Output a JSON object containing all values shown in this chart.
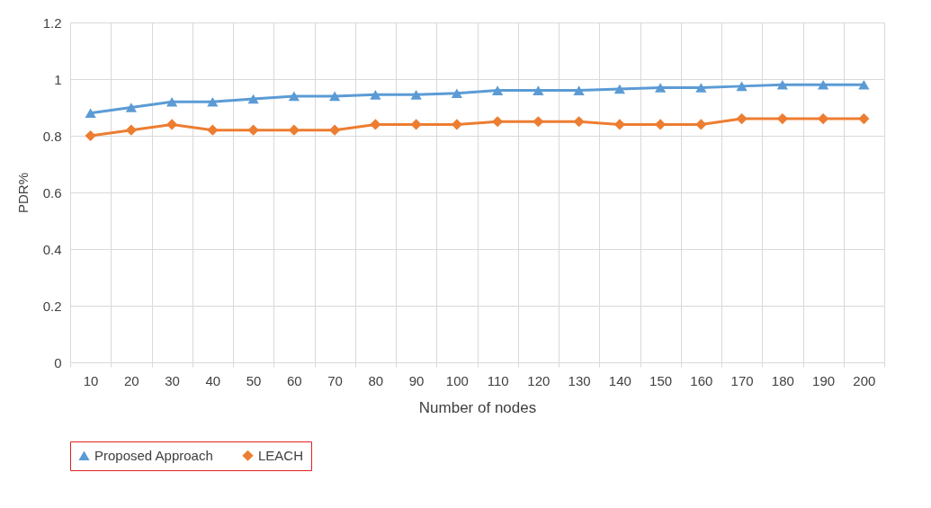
{
  "chart_data": {
    "type": "line",
    "xlabel": "Number of nodes",
    "ylabel": "PDR%",
    "categories": [
      "10",
      "20",
      "30",
      "40",
      "50",
      "60",
      "70",
      "80",
      "90",
      "100",
      "110",
      "120",
      "130",
      "140",
      "150",
      "160",
      "170",
      "180",
      "190",
      "200"
    ],
    "series": [
      {
        "name": "Proposed Approach",
        "color": "#5b9bd5",
        "marker": "triangle",
        "values": [
          0.88,
          0.9,
          0.92,
          0.92,
          0.93,
          0.94,
          0.94,
          0.945,
          0.945,
          0.95,
          0.96,
          0.96,
          0.96,
          0.965,
          0.97,
          0.97,
          0.975,
          0.98,
          0.98,
          0.98
        ]
      },
      {
        "name": "LEACH",
        "color": "#ed7d31",
        "marker": "diamond",
        "values": [
          0.8,
          0.82,
          0.84,
          0.82,
          0.82,
          0.82,
          0.82,
          0.84,
          0.84,
          0.84,
          0.85,
          0.85,
          0.85,
          0.84,
          0.84,
          0.84,
          0.86,
          0.86,
          0.86,
          0.86
        ]
      }
    ],
    "ylim": [
      0,
      1.2
    ],
    "yticks": [
      0,
      0.2,
      0.4,
      0.6,
      0.8,
      1,
      1.2
    ],
    "grid": true,
    "legend": "bottom",
    "line_style": "solid"
  }
}
